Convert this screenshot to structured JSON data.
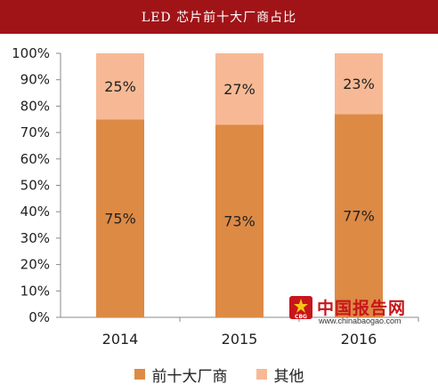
{
  "header": {
    "title": "LED 芯片前十大厂商占比"
  },
  "watermark": {
    "name": "中国报告网",
    "url": "www.chinabaogao.com",
    "logo_text": "CBG"
  },
  "colors": {
    "title_bar": "#a01418",
    "top10": "#dd8a45",
    "others": "#f7b995",
    "watermark": "#c8151b"
  },
  "chart_data": {
    "type": "bar",
    "stacked": true,
    "title": "LED 芯片前十大厂商占比",
    "categories": [
      "2014",
      "2015",
      "2016"
    ],
    "series": [
      {
        "name": "前十大厂商",
        "values": [
          75,
          73,
          77
        ],
        "labels": [
          "75%",
          "73%",
          "77%"
        ],
        "color": "#dd8a45"
      },
      {
        "name": "其他",
        "values": [
          25,
          27,
          23
        ],
        "labels": [
          "25%",
          "27%",
          "23%"
        ],
        "color": "#f7b995"
      }
    ],
    "ylim": [
      0,
      100
    ],
    "yticks": [
      "0%",
      "10%",
      "20%",
      "30%",
      "40%",
      "50%",
      "60%",
      "70%",
      "80%",
      "90%",
      "100%"
    ],
    "xlabel": "",
    "ylabel": "",
    "grid": false,
    "legend": "bottom"
  }
}
